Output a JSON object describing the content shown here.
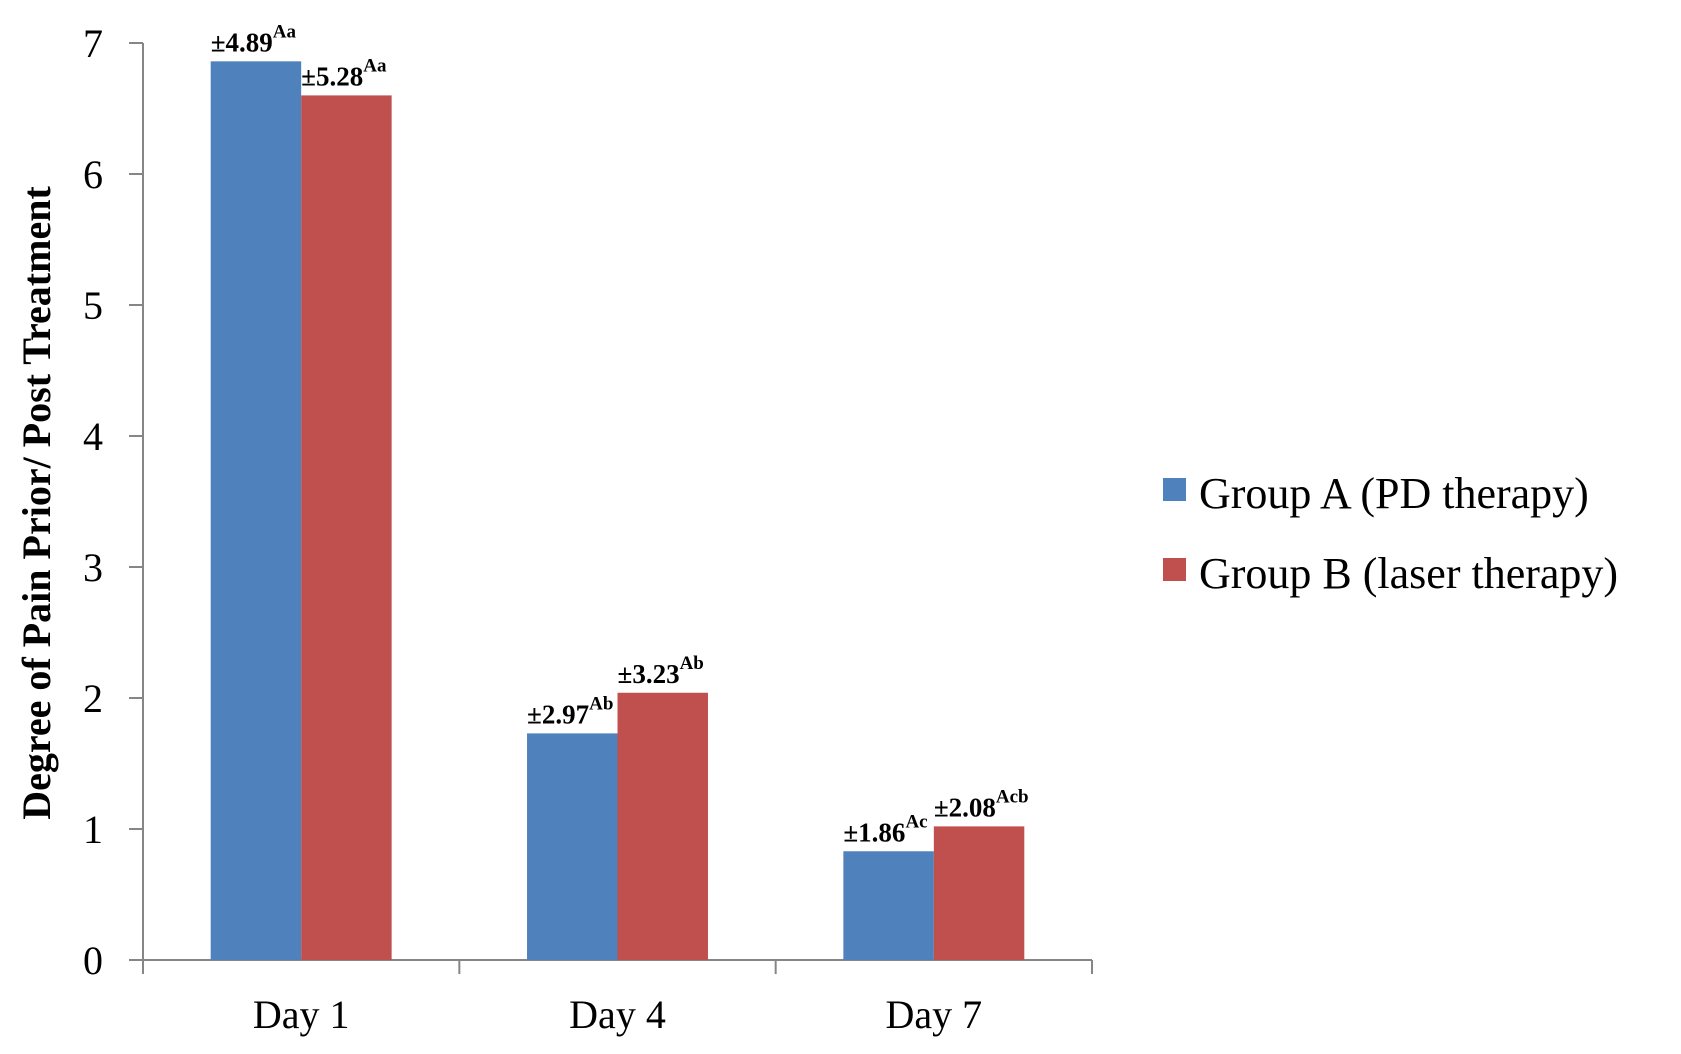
{
  "chart_data": {
    "type": "bar",
    "title": "",
    "xlabel": "",
    "ylabel": "Degree of Pain Prior/ Post Treatment",
    "ylim": [
      0,
      7
    ],
    "yticks": [
      0,
      1,
      2,
      3,
      4,
      5,
      6,
      7
    ],
    "grid": false,
    "legend_position": "right",
    "categories": [
      "Day 1",
      "Day 4",
      "Day 7"
    ],
    "series": [
      {
        "name": "Group A (PD therapy)",
        "color": "#4F81BD",
        "values": [
          6.86,
          1.73,
          0.83
        ],
        "labels": [
          "±4.89",
          "±2.97",
          "±1.86"
        ],
        "superscripts": [
          "Aa",
          "Ab",
          "Ac"
        ]
      },
      {
        "name": "Group B (laser therapy)",
        "color": "#C0504D",
        "values": [
          6.6,
          2.04,
          1.02
        ],
        "labels": [
          "±5.28",
          "±3.23",
          "±2.08"
        ],
        "superscripts": [
          "Aa",
          "Ab",
          "Acb"
        ]
      }
    ]
  }
}
